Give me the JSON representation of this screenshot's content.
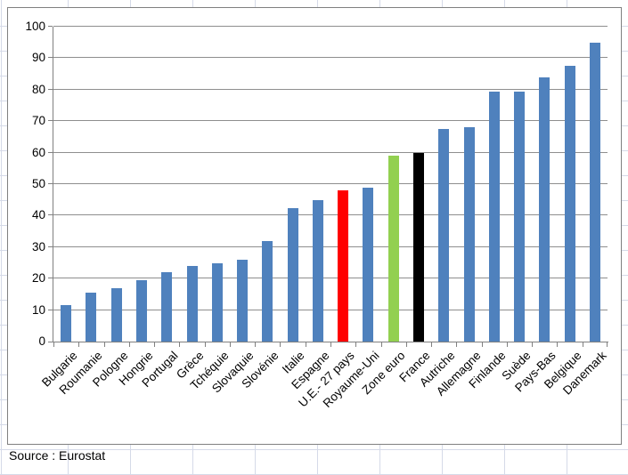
{
  "palette": {
    "bar_default": "#4F81BD",
    "bar_ue27": "#FF0000",
    "bar_zone_euro": "#92D050",
    "bar_france": "#000000",
    "gridline": "#8E8E8E",
    "axis": "#808080",
    "chart_border": "#808080",
    "sheet_gridline": "#D5DAE8",
    "text": "#000000"
  },
  "chart_data": {
    "type": "bar",
    "title": "",
    "xlabel": "",
    "ylabel": "",
    "categories": [
      "Bulgarie",
      "Roumanie",
      "Pologne",
      "Hongrie",
      "Portugal",
      "Grèce",
      "Tchéquie",
      "Slovaquie",
      "Slovénie",
      "Italie",
      "Espagne",
      "U.E.- 27 pays",
      "Royaume-Uni",
      "Zone euro",
      "France",
      "Autriche",
      "Allemagne",
      "Finlande",
      "Suède",
      "Pays-Bas",
      "Belgique",
      "Danemark"
    ],
    "values": [
      11.5,
      15.5,
      17,
      19.5,
      22,
      24,
      25,
      26,
      32,
      42.5,
      45,
      48,
      49,
      59,
      60,
      67.5,
      68,
      79.5,
      79.5,
      84,
      87.5,
      95
    ],
    "default_bar_color": "#4F81BD",
    "bar_colors": {
      "U.E.- 27 pays": "#FF0000",
      "Zone euro": "#92D050",
      "France": "#000000"
    },
    "ylim": [
      0,
      100
    ],
    "ytick_step": 10,
    "ytick_labels": [
      "0",
      "10",
      "20",
      "30",
      "40",
      "50",
      "60",
      "70",
      "80",
      "90",
      "100"
    ],
    "x_label_rotation_deg": 45,
    "grid": true,
    "legend": false,
    "source_note": "Source : Eurostat"
  }
}
